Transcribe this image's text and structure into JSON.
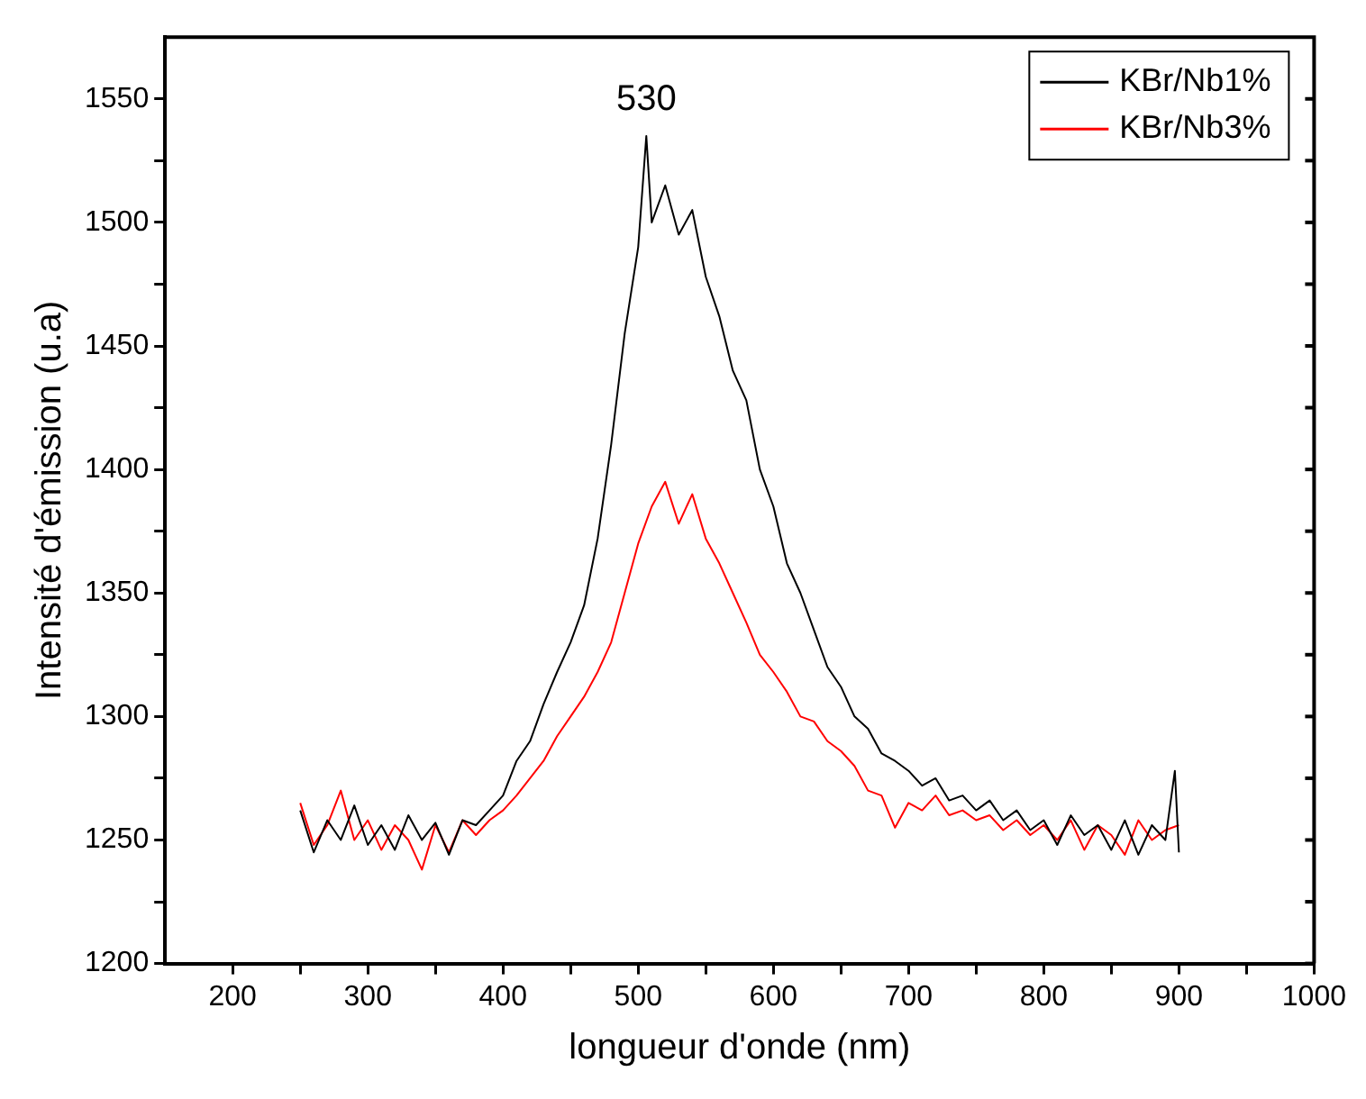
{
  "chart_data": {
    "type": "line",
    "xlabel": "longueur d'onde (nm)",
    "ylabel": "Intensité d'émission (u.a)",
    "xlim": [
      150,
      1000
    ],
    "ylim": [
      1200,
      1575
    ],
    "xticks": [
      200,
      {
        "value": 250,
        "label": null
      },
      300,
      {
        "value": 350,
        "label": null
      },
      400,
      {
        "value": 450,
        "label": null
      },
      500,
      {
        "value": 550,
        "label": null
      },
      600,
      {
        "value": 650,
        "label": null
      },
      700,
      {
        "value": 750,
        "label": null
      },
      800,
      {
        "value": 850,
        "label": null
      },
      900,
      {
        "value": 950,
        "label": null
      },
      1000
    ],
    "yticks": [
      1200,
      {
        "value": 1225,
        "label": null
      },
      1250,
      {
        "value": 1275,
        "label": null
      },
      1300,
      {
        "value": 1325,
        "label": null
      },
      1350,
      {
        "value": 1375,
        "label": null
      },
      1400,
      {
        "value": 1425,
        "label": null
      },
      1450,
      {
        "value": 1475,
        "label": null
      },
      1500,
      {
        "value": 1525,
        "label": null
      },
      1550
    ],
    "legend": "top right",
    "marker": "none",
    "annotations": [
      "530"
    ],
    "series": [
      {
        "name": "KBr/Nb1%",
        "color": "#000000",
        "x": [
          250,
          260,
          270,
          280,
          290,
          300,
          310,
          320,
          330,
          340,
          350,
          360,
          370,
          380,
          390,
          400,
          410,
          420,
          430,
          440,
          450,
          460,
          470,
          480,
          490,
          500,
          506,
          510,
          520,
          530,
          540,
          550,
          560,
          570,
          580,
          590,
          600,
          610,
          620,
          630,
          640,
          650,
          660,
          670,
          680,
          690,
          700,
          710,
          720,
          730,
          740,
          750,
          760,
          770,
          780,
          790,
          800,
          810,
          820,
          830,
          840,
          850,
          860,
          870,
          880,
          890,
          897,
          900
        ],
        "values": [
          1262,
          1245,
          1258,
          1250,
          1264,
          1248,
          1256,
          1246,
          1260,
          1250,
          1257,
          1244,
          1258,
          1256,
          1262,
          1268,
          1282,
          1290,
          1305,
          1318,
          1330,
          1345,
          1372,
          1410,
          1455,
          1490,
          1535,
          1500,
          1515,
          1495,
          1505,
          1478,
          1462,
          1440,
          1428,
          1400,
          1385,
          1362,
          1350,
          1335,
          1320,
          1312,
          1300,
          1295,
          1285,
          1282,
          1278,
          1272,
          1275,
          1266,
          1268,
          1262,
          1266,
          1258,
          1262,
          1254,
          1258,
          1248,
          1260,
          1252,
          1256,
          1246,
          1258,
          1244,
          1256,
          1250,
          1278,
          1245
        ]
      },
      {
        "name": "KBr/Nb3%",
        "color": "#ff0000",
        "x": [
          250,
          260,
          270,
          280,
          290,
          300,
          310,
          320,
          330,
          340,
          350,
          360,
          370,
          380,
          390,
          400,
          410,
          420,
          430,
          440,
          450,
          460,
          470,
          480,
          490,
          500,
          510,
          520,
          530,
          540,
          550,
          560,
          570,
          580,
          590,
          600,
          610,
          620,
          630,
          640,
          650,
          660,
          670,
          680,
          690,
          700,
          710,
          720,
          730,
          740,
          750,
          760,
          770,
          780,
          790,
          800,
          810,
          820,
          830,
          840,
          850,
          860,
          870,
          880,
          890,
          900
        ],
        "values": [
          1265,
          1248,
          1256,
          1270,
          1250,
          1258,
          1246,
          1256,
          1250,
          1238,
          1256,
          1245,
          1258,
          1252,
          1258,
          1262,
          1268,
          1275,
          1282,
          1292,
          1300,
          1308,
          1318,
          1330,
          1350,
          1370,
          1385,
          1395,
          1378,
          1390,
          1372,
          1362,
          1350,
          1338,
          1325,
          1318,
          1310,
          1300,
          1298,
          1290,
          1286,
          1280,
          1270,
          1268,
          1255,
          1265,
          1262,
          1268,
          1260,
          1262,
          1258,
          1260,
          1254,
          1258,
          1252,
          1256,
          1250,
          1258,
          1246,
          1256,
          1252,
          1244,
          1258,
          1250,
          1254,
          1256
        ]
      }
    ]
  }
}
